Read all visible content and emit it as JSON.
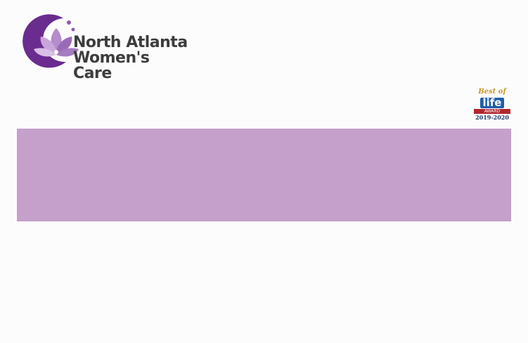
{
  "header": {
    "logo": {
      "line1": "North Atlanta",
      "line2": "Women's Care"
    },
    "badge": {
      "top": "Best of",
      "main": "life",
      "ribbon": "AWARD",
      "years": "2019-2020"
    }
  }
}
